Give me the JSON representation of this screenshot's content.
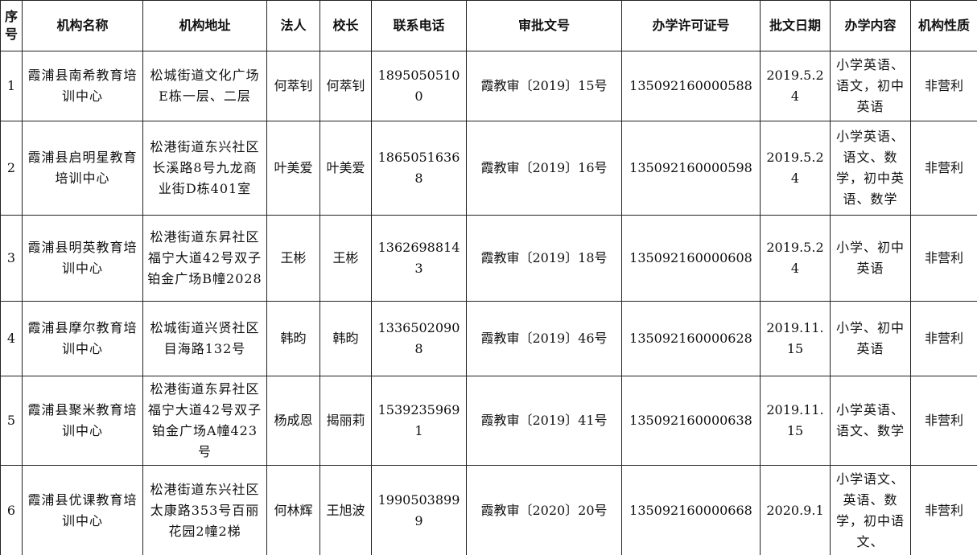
{
  "table": {
    "headers": [
      "序号",
      "机构名称",
      "机构地址",
      "法人",
      "校长",
      "联系电话",
      "审批文号",
      "办学许可证号",
      "批文日期",
      "办学内容",
      "机构性质"
    ],
    "rows": [
      [
        "1",
        "霞浦县南希教育培训中心",
        "松城街道文化广场E栋一层、二层",
        "何萃钊",
        "何萃钊",
        "18950505100",
        "霞教审〔2019〕15号",
        "135092160000588",
        "2019.5.24",
        "小学英语、语文，初中英语",
        "非营利"
      ],
      [
        "2",
        "霞浦县启明星教育培训中心",
        "松港街道东兴社区长溪路8号九龙商业街D栋401室",
        "叶美爱",
        "叶美爱",
        "18650516368",
        "霞教审〔2019〕16号",
        "135092160000598",
        "2019.5.24",
        "小学英语、语文、数学，初中英语、数学",
        "非营利"
      ],
      [
        "3",
        "霞浦县明英教育培训中心",
        "松港街道东昇社区福宁大道42号双子铂金广场B幢2028",
        "王彬",
        "王彬",
        "13626988143",
        "霞教审〔2019〕18号",
        "135092160000608",
        "2019.5.24",
        "小学、初中英语",
        "非营利"
      ],
      [
        "4",
        "霞浦县摩尔教育培训中心",
        "松城街道兴贤社区目海路132号",
        "韩昀",
        "韩昀",
        "13365020908",
        "霞教审〔2019〕46号",
        "135092160000628",
        "2019.11.15",
        "小学、初中英语",
        "非营利"
      ],
      [
        "5",
        "霞浦县聚米教育培训中心",
        "松港街道东昇社区福宁大道42号双子铂金广场A幢423号",
        "杨成恩",
        "揭丽莉",
        "15392359691",
        "霞教审〔2019〕41号",
        "135092160000638",
        "2019.11.15",
        "小学英语、语文、数学",
        "非营利"
      ],
      [
        "6",
        "霞浦县优课教育培训中心",
        "松港街道东兴社区太康路353号百丽花园2幢2梯",
        "何林辉",
        "王旭波",
        "19905038999",
        "霞教审〔2020〕20号",
        "135092160000668",
        "2020.9.1",
        "小学语文、英语、数学，初中语文、",
        "非营利"
      ]
    ]
  }
}
